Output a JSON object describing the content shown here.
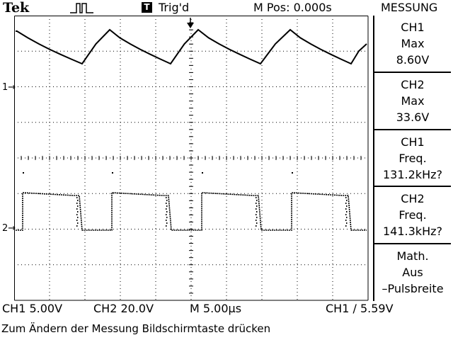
{
  "header": {
    "brand": "Tek",
    "trigger_box": "T",
    "trigger_status": "Trig'd",
    "position": "M Pos: 0.000s",
    "menu_title": "MESSUNG"
  },
  "markers": {
    "ch1": "1",
    "ch2": "2"
  },
  "measurements": [
    {
      "channel": "CH1",
      "type": "Max",
      "value": "8.60V"
    },
    {
      "channel": "CH2",
      "type": "Max",
      "value": "33.6V"
    },
    {
      "channel": "CH1",
      "type": "Freq.",
      "value": "131.2kHz?"
    },
    {
      "channel": "CH2",
      "type": "Freq.",
      "value": "141.3kHz?"
    },
    {
      "channel": "Math.",
      "type": "Aus",
      "value": "–Pulsbreite"
    }
  ],
  "status": {
    "ch1_scale": "CH1  5.00V",
    "ch2_scale": "CH2  20.0V",
    "timebase": "M 5.00µs",
    "trigger": "CH1 ∕ 5.59V"
  },
  "help_text": "Zum Ändern der Messung Bildschirmtaste drücken",
  "icons": {
    "trigger_waveform": "pulse-icon",
    "trigger_position": "down-arrow-icon"
  }
}
